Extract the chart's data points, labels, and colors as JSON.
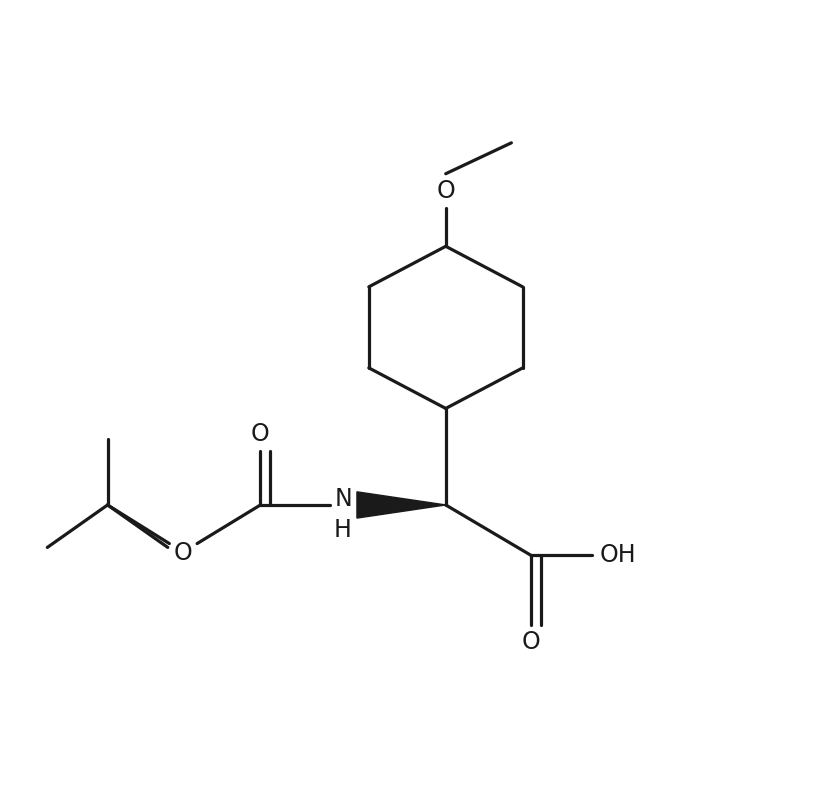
{
  "background_color": "#ffffff",
  "line_color": "#1a1a1a",
  "line_width": 2.3,
  "text_color": "#1a1a1a",
  "font_size": 17,
  "figsize": [
    8.22,
    7.86
  ],
  "dpi": 100,
  "xlim": [
    0,
    10
  ],
  "ylim": [
    0,
    10
  ]
}
